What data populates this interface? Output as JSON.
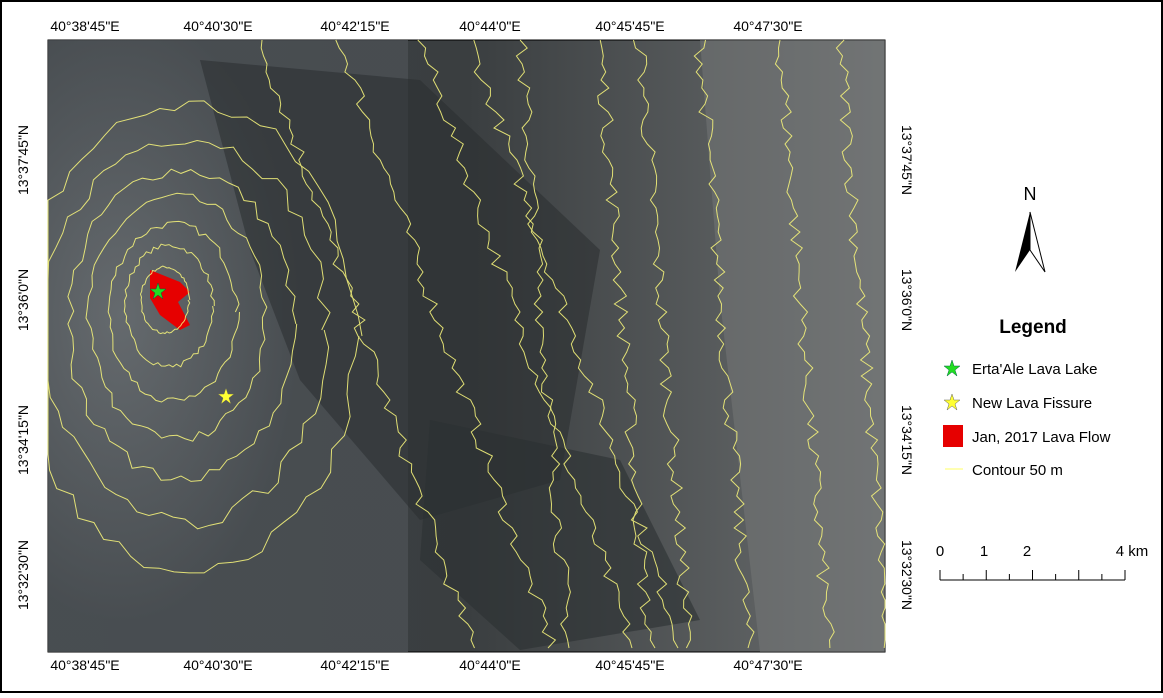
{
  "map": {
    "lon_labels": [
      "40°38'45\"E",
      "40°40'30\"E",
      "40°42'15\"E",
      "40°44'0\"E",
      "40°45'45\"E",
      "40°47'30\"E"
    ],
    "lat_labels": [
      "13°37'45\"N",
      "13°36'0\"N",
      "13°34'15\"N",
      "13°32'30\"N"
    ],
    "north": "N",
    "legend": {
      "title": "Legend",
      "items": [
        "Erta'Ale Lava Lake",
        "New Lava Fissure",
        "Jan, 2017 Lava Flow",
        "Contour 50 m"
      ]
    },
    "scale": {
      "labels": [
        "0",
        "1",
        "2",
        "4 km"
      ]
    }
  }
}
